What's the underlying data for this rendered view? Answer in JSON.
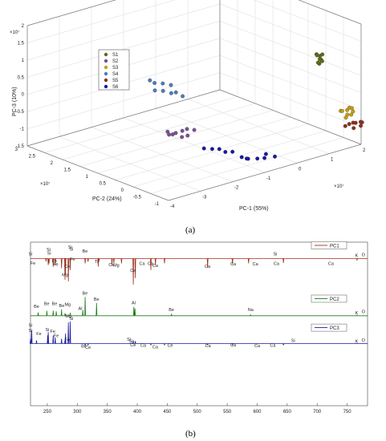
{
  "captions": {
    "a": "(a)",
    "b": "(b)"
  },
  "chart_data": [
    {
      "type": "scatter",
      "panel": "(a)",
      "xlabel": "PC-1 (55%)",
      "ylabel": "PC-2 (24%)",
      "zlabel": "PC-3 (10%)",
      "x_exponent": "×10⁷",
      "y_exponent": "×10⁷",
      "z_exponent": "×10⁷",
      "x_ticks": [
        "-4",
        "-3",
        "-2",
        "-1",
        "0",
        "1",
        "2"
      ],
      "y_ticks": [
        "-1",
        "-0.5",
        "0",
        "0.5",
        "1",
        "1.5",
        "2",
        "2.5",
        "3"
      ],
      "z_ticks": [
        "-1.5",
        "-1",
        "-0.5",
        "0",
        "0.5",
        "1",
        "1.5",
        "2"
      ],
      "xlim": [
        -4,
        2
      ],
      "ylim": [
        -1,
        3
      ],
      "zlim": [
        -1.5,
        2
      ],
      "grid": true,
      "legend_position": "top-left",
      "series": [
        {
          "name": "S1",
          "color": "#5a6e18",
          "points": [
            [
              1.05,
              -0.6,
              1.22
            ],
            [
              1.1,
              -0.65,
              1.18
            ],
            [
              1.12,
              -0.55,
              1.15
            ],
            [
              1.08,
              -0.7,
              1.1
            ],
            [
              1.15,
              -0.6,
              1.05
            ],
            [
              1.05,
              -0.68,
              0.98
            ],
            [
              1.12,
              -0.58,
              0.95
            ],
            [
              1.18,
              -0.64,
              1.0
            ],
            [
              1.1,
              -0.72,
              1.25
            ]
          ]
        },
        {
          "name": "S2",
          "color": "#7a5098",
          "points": [
            [
              -3.15,
              -0.2,
              -0.05
            ],
            [
              -3.1,
              -0.3,
              -0.1
            ],
            [
              -2.95,
              -0.25,
              -0.12
            ],
            [
              -2.8,
              -0.3,
              -0.08
            ],
            [
              -2.6,
              -0.25,
              -0.1
            ],
            [
              -2.45,
              -0.32,
              -0.14
            ],
            [
              -3.05,
              -0.15,
              -0.18
            ],
            [
              -2.9,
              -0.38,
              -0.2
            ],
            [
              -2.7,
              -0.36,
              -0.22
            ]
          ]
        },
        {
          "name": "S3",
          "color": "#c4a010",
          "points": [
            [
              1.2,
              -1.15,
              -0.25
            ],
            [
              1.3,
              -1.1,
              -0.3
            ],
            [
              1.4,
              -1.15,
              -0.28
            ],
            [
              1.5,
              -1.12,
              -0.25
            ],
            [
              1.55,
              -1.18,
              -0.35
            ],
            [
              1.45,
              -1.22,
              -0.4
            ],
            [
              1.35,
              -1.2,
              -0.38
            ],
            [
              1.25,
              -1.25,
              -0.42
            ],
            [
              1.6,
              -1.1,
              -0.3
            ]
          ]
        },
        {
          "name": "S4",
          "color": "#4a7cc0",
          "points": [
            [
              -2.6,
              0.8,
              0.9
            ],
            [
              -2.4,
              0.85,
              0.75
            ],
            [
              -2.2,
              0.8,
              0.7
            ],
            [
              -2.0,
              0.75,
              0.62
            ],
            [
              -2.3,
              0.7,
              0.55
            ],
            [
              -2.1,
              0.65,
              0.45
            ],
            [
              -1.9,
              0.7,
              0.4
            ],
            [
              -2.5,
              0.75,
              0.6
            ],
            [
              -1.8,
              0.6,
              0.3
            ]
          ]
        },
        {
          "name": "S5",
          "color": "#8a3020",
          "points": [
            [
              1.3,
              -1.3,
              -0.6
            ],
            [
              1.4,
              -1.32,
              -0.58
            ],
            [
              1.5,
              -1.3,
              -0.62
            ],
            [
              1.6,
              -1.35,
              -0.6
            ],
            [
              1.2,
              -1.28,
              -0.64
            ],
            [
              1.7,
              -1.3,
              -0.66
            ],
            [
              1.35,
              -1.38,
              -0.7
            ],
            [
              1.55,
              -1.4,
              -0.68
            ]
          ]
        },
        {
          "name": "S6",
          "color": "#1818a8",
          "points": [
            [
              -1.5,
              -0.8,
              -1.0
            ],
            [
              -1.4,
              -0.85,
              -1.05
            ],
            [
              -1.3,
              -0.8,
              -1.1
            ],
            [
              -1.1,
              -0.88,
              -1.12
            ],
            [
              -0.9,
              -0.9,
              -1.15
            ],
            [
              -0.8,
              -0.85,
              -1.08
            ],
            [
              -2.2,
              -0.6,
              -0.65
            ],
            [
              -2.0,
              -0.62,
              -0.7
            ],
            [
              -1.9,
              -0.7,
              -0.78
            ],
            [
              -1.7,
              -0.72,
              -0.82
            ],
            [
              -0.6,
              -0.92,
              -1.18
            ],
            [
              -2.4,
              -0.55,
              -0.6
            ]
          ]
        }
      ]
    },
    {
      "type": "line",
      "panel": "(b)",
      "x_ticks": [
        250,
        300,
        350,
        400,
        450,
        500,
        550,
        600,
        650,
        700,
        750
      ],
      "xlim": [
        222,
        784
      ],
      "legend_position": "top-right",
      "series": [
        {
          "name": "PC1",
          "color": "#a0301a",
          "baseline": 0.9,
          "peaks": [
            [
              247.9,
              -0.018
            ],
            [
              251.6,
              -0.04
            ],
            [
              252.9,
              -0.03
            ],
            [
              259.9,
              -0.05
            ],
            [
              263.2,
              -0.042
            ],
            [
              273.8,
              -0.06
            ],
            [
              279.6,
              -0.13
            ],
            [
              280.3,
              -0.1
            ],
            [
              285.2,
              -0.14
            ],
            [
              288.2,
              -0.07
            ],
            [
              313.1,
              -0.03
            ],
            [
              317.9,
              -0.02
            ],
            [
              334.9,
              -0.05
            ],
            [
              336.1,
              -0.02
            ],
            [
              357.8,
              -0.04
            ],
            [
              361.0,
              -0.03
            ],
            [
              373.7,
              -0.03
            ],
            [
              393.4,
              -0.16
            ],
            [
              396.8,
              -0.12
            ],
            [
              422.7,
              -0.07
            ],
            [
              430.3,
              -0.04
            ],
            [
              445.5,
              -0.03
            ],
            [
              517.3,
              -0.055
            ],
            [
              558.8,
              -0.035
            ],
            [
              585.7,
              -0.03
            ],
            [
              643.8,
              -0.028
            ],
            [
              766.5,
              -0.012
            ]
          ],
          "labels": [
            [
              222,
              "Si",
              0.92
            ],
            [
              226,
              "Fe",
              0.862
            ],
            [
              252,
              "Si",
              0.945
            ],
            [
              253,
              "Si",
              0.925
            ],
            [
              262,
              "Fe",
              0.875
            ],
            [
              264,
              "Fe",
              0.855
            ],
            [
              279.6,
              "Mg",
              0.792
            ],
            [
              283,
              "Ce",
              0.843
            ],
            [
              288,
              "Si",
              0.962
            ],
            [
              290,
              "Si",
              0.948
            ],
            [
              292,
              "Fe",
              0.888
            ],
            [
              313,
              "Be",
              0.937
            ],
            [
              332,
              "Ti",
              0.873
            ],
            [
              357,
              "Ca",
              0.852
            ],
            [
              365,
              "Mg",
              0.85
            ],
            [
              393,
              "Ce",
              0.818
            ],
            [
              408,
              "Ca",
              0.86
            ],
            [
              422,
              "Ca",
              0.86
            ],
            [
              430,
              "Ca",
              0.847
            ],
            [
              517,
              "Ca",
              0.843
            ],
            [
              560,
              "Ca",
              0.858
            ],
            [
              597,
              "Ca",
              0.858
            ],
            [
              630,
              "Si",
              0.92
            ],
            [
              632,
              "Ca",
              0.86
            ],
            [
              723,
              "Ca",
              0.86
            ],
            [
              766,
              "K",
              0.91
            ],
            [
              777,
              "O",
              0.915
            ]
          ]
        },
        {
          "name": "PC2",
          "color": "#1f7a1f",
          "baseline": 0.55,
          "peaks": [
            [
              234.9,
              0.02
            ],
            [
              249.3,
              0.03
            ],
            [
              259.9,
              0.032
            ],
            [
              265.0,
              0.028
            ],
            [
              273.8,
              0.04
            ],
            [
              279.6,
              0.015
            ],
            [
              288.2,
              0.018
            ],
            [
              309.3,
              0.035
            ],
            [
              313.1,
              0.115
            ],
            [
              332.1,
              0.078
            ],
            [
              394.4,
              0.055
            ],
            [
              396.2,
              0.045
            ],
            [
              457.1,
              0.012
            ],
            [
              589.0,
              0.006
            ],
            [
              766.5,
              0.004
            ]
          ],
          "labels": [
            [
              232,
              "Be",
              0.598
            ],
            [
              249,
              "Be",
              0.615
            ],
            [
              262,
              "Be",
              0.615
            ],
            [
              274,
              "Be",
              0.602
            ],
            [
              284,
              "Mg",
              0.61
            ],
            [
              305,
              "Al",
              0.585
            ],
            [
              313,
              "Be",
              0.68
            ],
            [
              332,
              "Be",
              0.643
            ],
            [
              394,
              "Al",
              0.62
            ],
            [
              457,
              "Be",
              0.578
            ],
            [
              589,
              "Na",
              0.578
            ],
            [
              766,
              "K",
              0.56
            ],
            [
              777,
              "O",
              0.565
            ]
          ]
        },
        {
          "name": "PC3",
          "color": "#1a1aa0",
          "baseline": 0.38,
          "peaks": [
            [
              222.0,
              0.03
            ],
            [
              224.0,
              0.08
            ],
            [
              232.0,
              0.02
            ],
            [
              250.7,
              0.05
            ],
            [
              251.6,
              0.07
            ],
            [
              259.9,
              0.05
            ],
            [
              263.2,
              0.038
            ],
            [
              273.8,
              0.03
            ],
            [
              279.6,
              0.02
            ],
            [
              280.3,
              0.06
            ],
            [
              285.2,
              0.13
            ],
            [
              288.2,
              0.135
            ],
            [
              313.1,
              -0.012
            ],
            [
              317.9,
              -0.01
            ],
            [
              393.4,
              0.02
            ],
            [
              396.8,
              0.015
            ],
            [
              422.7,
              -0.01
            ],
            [
              445.5,
              -0.008
            ],
            [
              517.3,
              -0.01
            ],
            [
              558.8,
              -0.008
            ],
            [
              643.8,
              -0.01
            ],
            [
              766.5,
              0.002
            ]
          ],
          "labels": [
            [
              222,
              "Si",
              0.482
            ],
            [
              222,
              "Si",
              0.45
            ],
            [
              236,
              "Fe",
              0.432
            ],
            [
              250,
              "Si",
              0.456
            ],
            [
              259,
              "Fe",
              0.446
            ],
            [
              265,
              "Fe",
              0.418
            ],
            [
              283,
              "Fe",
              0.395
            ],
            [
              285,
              "Mg",
              0.54
            ],
            [
              290,
              "Si",
              0.525
            ],
            [
              311,
              "Be",
              0.356
            ],
            [
              318,
              "Ce",
              0.348
            ],
            [
              386,
              "Si",
              0.398
            ],
            [
              389,
              "Si",
              0.386
            ],
            [
              393,
              "Ce",
              0.362
            ],
            [
              410,
              "Ca",
              0.36
            ],
            [
              430,
              "Ca",
              0.35
            ],
            [
              455,
              "Ce",
              0.36
            ],
            [
              518,
              "Ca",
              0.358
            ],
            [
              560,
              "Ca",
              0.362
            ],
            [
              600,
              "Ca",
              0.358
            ],
            [
              626,
              "Ca",
              0.36
            ],
            [
              660,
              "Si",
              0.39
            ],
            [
              766,
              "K",
              0.386
            ],
            [
              777,
              "O",
              0.392
            ]
          ]
        }
      ]
    }
  ]
}
